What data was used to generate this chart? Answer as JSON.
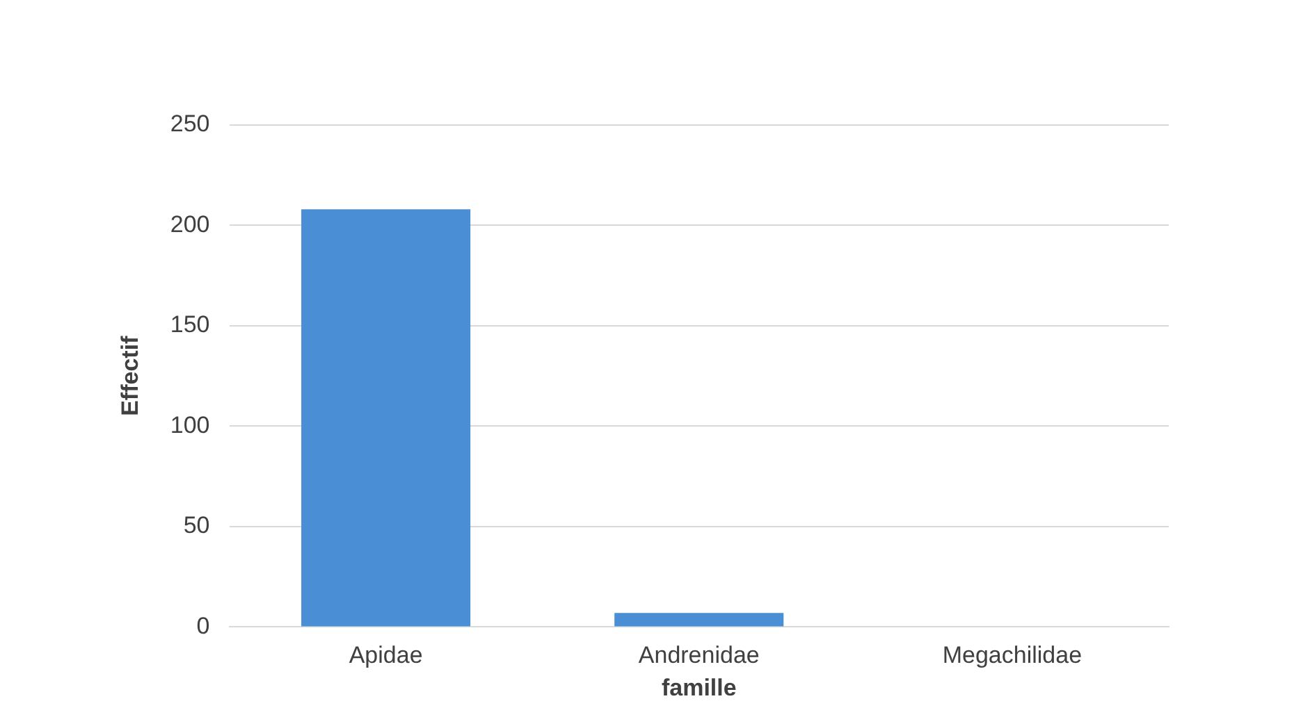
{
  "chart_data": {
    "type": "bar",
    "xlabel": "famille",
    "ylabel": "Effectif",
    "categories": [
      "Apidae",
      "Andrenidae",
      "Megachilidae"
    ],
    "values": [
      208,
      7,
      0
    ],
    "color": "#4a8fd6",
    "ylim": [
      0,
      250
    ],
    "yticks": [
      0,
      50,
      100,
      150,
      200,
      250
    ],
    "grid": "y",
    "legend": false
  }
}
